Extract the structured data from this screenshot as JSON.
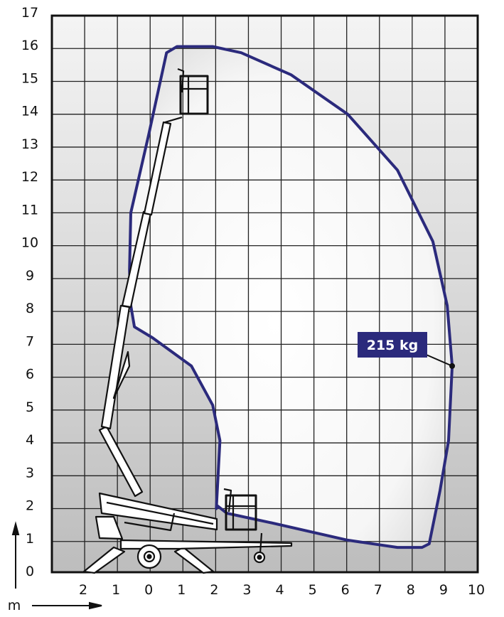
{
  "chart_data": {
    "type": "diagram",
    "x_ticks": [
      "2",
      "1",
      "0",
      "1",
      "2",
      "3",
      "4",
      "5",
      "6",
      "7",
      "8",
      "9",
      "10"
    ],
    "x_tick_values": [
      -2,
      -1,
      0,
      1,
      2,
      3,
      4,
      5,
      6,
      7,
      8,
      9,
      10
    ],
    "y_ticks": [
      "0",
      "1",
      "2",
      "3",
      "4",
      "5",
      "6",
      "7",
      "8",
      "9",
      "10",
      "11",
      "12",
      "13",
      "14",
      "15",
      "16",
      "17"
    ],
    "xlim": [
      -3,
      10
    ],
    "ylim": [
      0,
      17
    ],
    "grid": true,
    "unit_label": "m",
    "envelope_color": "#2b2a7c",
    "envelope": [
      [
        2.02,
        2.0
      ],
      [
        2.13,
        4.07
      ],
      [
        1.91,
        5.15
      ],
      [
        1.26,
        6.34
      ],
      [
        0.07,
        7.2
      ],
      [
        -0.48,
        7.53
      ],
      [
        -0.59,
        8.18
      ],
      [
        -0.63,
        9.26
      ],
      [
        -0.59,
        11.0
      ],
      [
        -0.04,
        13.4
      ],
      [
        0.5,
        15.87
      ],
      [
        0.82,
        16.06
      ],
      [
        1.91,
        16.06
      ],
      [
        2.78,
        15.87
      ],
      [
        4.3,
        15.2
      ],
      [
        6.03,
        14.0
      ],
      [
        7.55,
        12.3
      ],
      [
        8.63,
        10.13
      ],
      [
        9.07,
        8.18
      ],
      [
        9.22,
        6.34
      ],
      [
        9.11,
        4.07
      ],
      [
        8.85,
        2.55
      ],
      [
        8.52,
        0.93
      ],
      [
        8.3,
        0.82
      ],
      [
        7.55,
        0.82
      ],
      [
        6.03,
        1.04
      ],
      [
        3.64,
        1.58
      ],
      [
        2.34,
        1.86
      ],
      [
        2.06,
        2.08
      ]
    ],
    "load_marker": {
      "x": 9.22,
      "y": 6.34,
      "label": "215 kg"
    }
  }
}
